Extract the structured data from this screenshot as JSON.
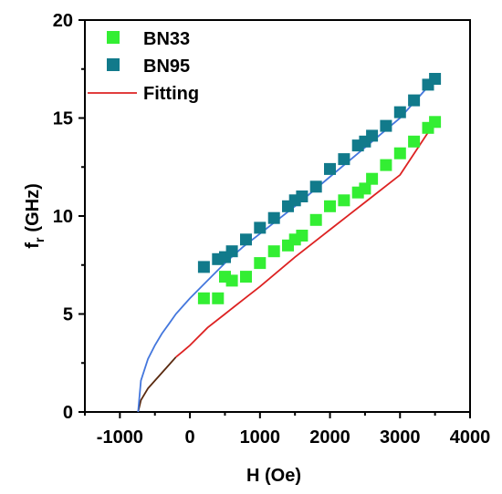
{
  "chart_data": {
    "type": "scatter",
    "xlabel": "H (Oe)",
    "ylabel": "f",
    "ylabel_sub": "r",
    "ylabel_unit": "(GHz)",
    "xlim": [
      -1500,
      4000
    ],
    "ylim": [
      0,
      20
    ],
    "x_ticks": [
      -1000,
      0,
      1000,
      2000,
      3000,
      4000
    ],
    "x_tick_labels": [
      "-1000",
      "0",
      "1000",
      "2000",
      "3000",
      "4000"
    ],
    "y_ticks": [
      0,
      5,
      10,
      15,
      20
    ],
    "y_tick_labels": [
      "0",
      "5",
      "10",
      "15",
      "20"
    ],
    "legend_position": "top-left",
    "grid": false,
    "series": [
      {
        "name": "BN33",
        "marker": "square",
        "color": "#33ee33",
        "x": [
          200,
          400,
          500,
          600,
          800,
          1000,
          1200,
          1400,
          1500,
          1600,
          1800,
          2000,
          2200,
          2400,
          2500,
          2600,
          2800,
          3000,
          3200,
          3400,
          3500
        ],
        "y": [
          5.8,
          5.8,
          6.9,
          6.7,
          6.9,
          7.6,
          8.2,
          8.5,
          8.8,
          9.0,
          9.8,
          10.5,
          10.8,
          11.2,
          11.4,
          11.9,
          12.6,
          13.2,
          13.8,
          14.5,
          14.8
        ]
      },
      {
        "name": "BN95",
        "marker": "square",
        "color": "#117a8b",
        "x": [
          200,
          400,
          500,
          600,
          800,
          1000,
          1200,
          1400,
          1500,
          1600,
          1800,
          2000,
          2200,
          2400,
          2500,
          2600,
          2800,
          3000,
          3200,
          3400,
          3500
        ],
        "y": [
          7.4,
          7.8,
          7.9,
          8.2,
          8.8,
          9.4,
          9.9,
          10.5,
          10.8,
          11.0,
          11.5,
          12.4,
          12.9,
          13.6,
          13.8,
          14.1,
          14.6,
          15.3,
          15.9,
          16.7,
          17.0
        ]
      },
      {
        "name": "Fitting",
        "marker": "line",
        "color": "#dd2222",
        "x": [
          -740,
          -700,
          -600,
          -500,
          -400,
          -300,
          -200,
          -100,
          0,
          250,
          500,
          750,
          1000,
          1500,
          2000,
          2500,
          3000,
          3500
        ],
        "y": [
          0.0,
          0.6,
          1.2,
          1.6,
          2.0,
          2.4,
          2.8,
          3.1,
          3.4,
          4.3,
          5.0,
          5.7,
          6.4,
          7.9,
          9.3,
          10.7,
          12.1,
          14.8
        ]
      },
      {
        "marker": "line",
        "color": "#4477dd",
        "x": [
          -740,
          -700,
          -600,
          -500,
          -400,
          -300,
          -200,
          -100,
          0,
          250,
          500,
          750,
          1000,
          1500,
          2000,
          2500,
          3000,
          3500
        ],
        "y": [
          0.0,
          1.6,
          2.7,
          3.4,
          4.0,
          4.5,
          5.0,
          5.4,
          5.8,
          6.7,
          7.6,
          8.4,
          9.1,
          10.5,
          12.0,
          13.5,
          15.0,
          17.0
        ]
      }
    ]
  },
  "legend": {
    "entry_bn33": "BN33",
    "entry_bn95": "BN95",
    "entry_fitting": "Fitting"
  },
  "colors": {
    "bn33_marker": "#33ee33",
    "bn95_marker": "#117a8b",
    "fit_red": "#dd2222",
    "fit_blue": "#4477dd",
    "fit_low_dark": "#5a2a10"
  }
}
